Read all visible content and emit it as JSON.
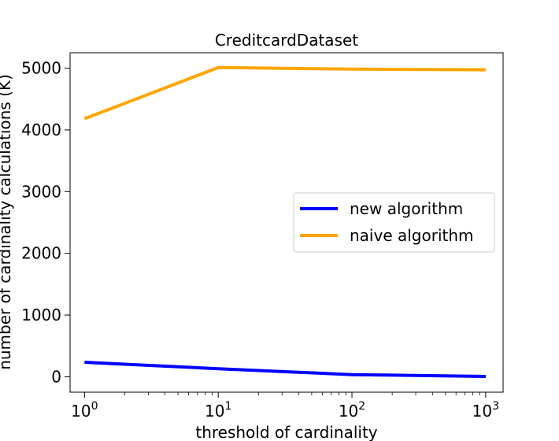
{
  "chart_data": {
    "type": "line",
    "title": "CreditcardDataset",
    "xlabel": "threshold of cardinality",
    "ylabel": "number of cardinality calculations (K)",
    "xscale": "log",
    "x": [
      1,
      10,
      100,
      1000
    ],
    "xticks": [
      1,
      10,
      100,
      1000
    ],
    "xtick_labels": [
      {
        "base": "10",
        "exp": "0"
      },
      {
        "base": "10",
        "exp": "1"
      },
      {
        "base": "10",
        "exp": "2"
      },
      {
        "base": "10",
        "exp": "3"
      }
    ],
    "yticks": [
      0,
      1000,
      2000,
      3000,
      4000,
      5000
    ],
    "ytick_labels": [
      "0",
      "1000",
      "2000",
      "3000",
      "4000",
      "5000"
    ],
    "xlim": [
      0.78,
      1350
    ],
    "ylim": [
      -250,
      5250
    ],
    "grid": false,
    "legend_position": "center-right",
    "series": [
      {
        "name": "new algorithm",
        "color": "#0000ff",
        "values": [
          235,
          130,
          35,
          5
        ]
      },
      {
        "name": "naive algorithm",
        "color": "#ffa500",
        "values": [
          4180,
          5010,
          4985,
          4975
        ]
      }
    ]
  }
}
